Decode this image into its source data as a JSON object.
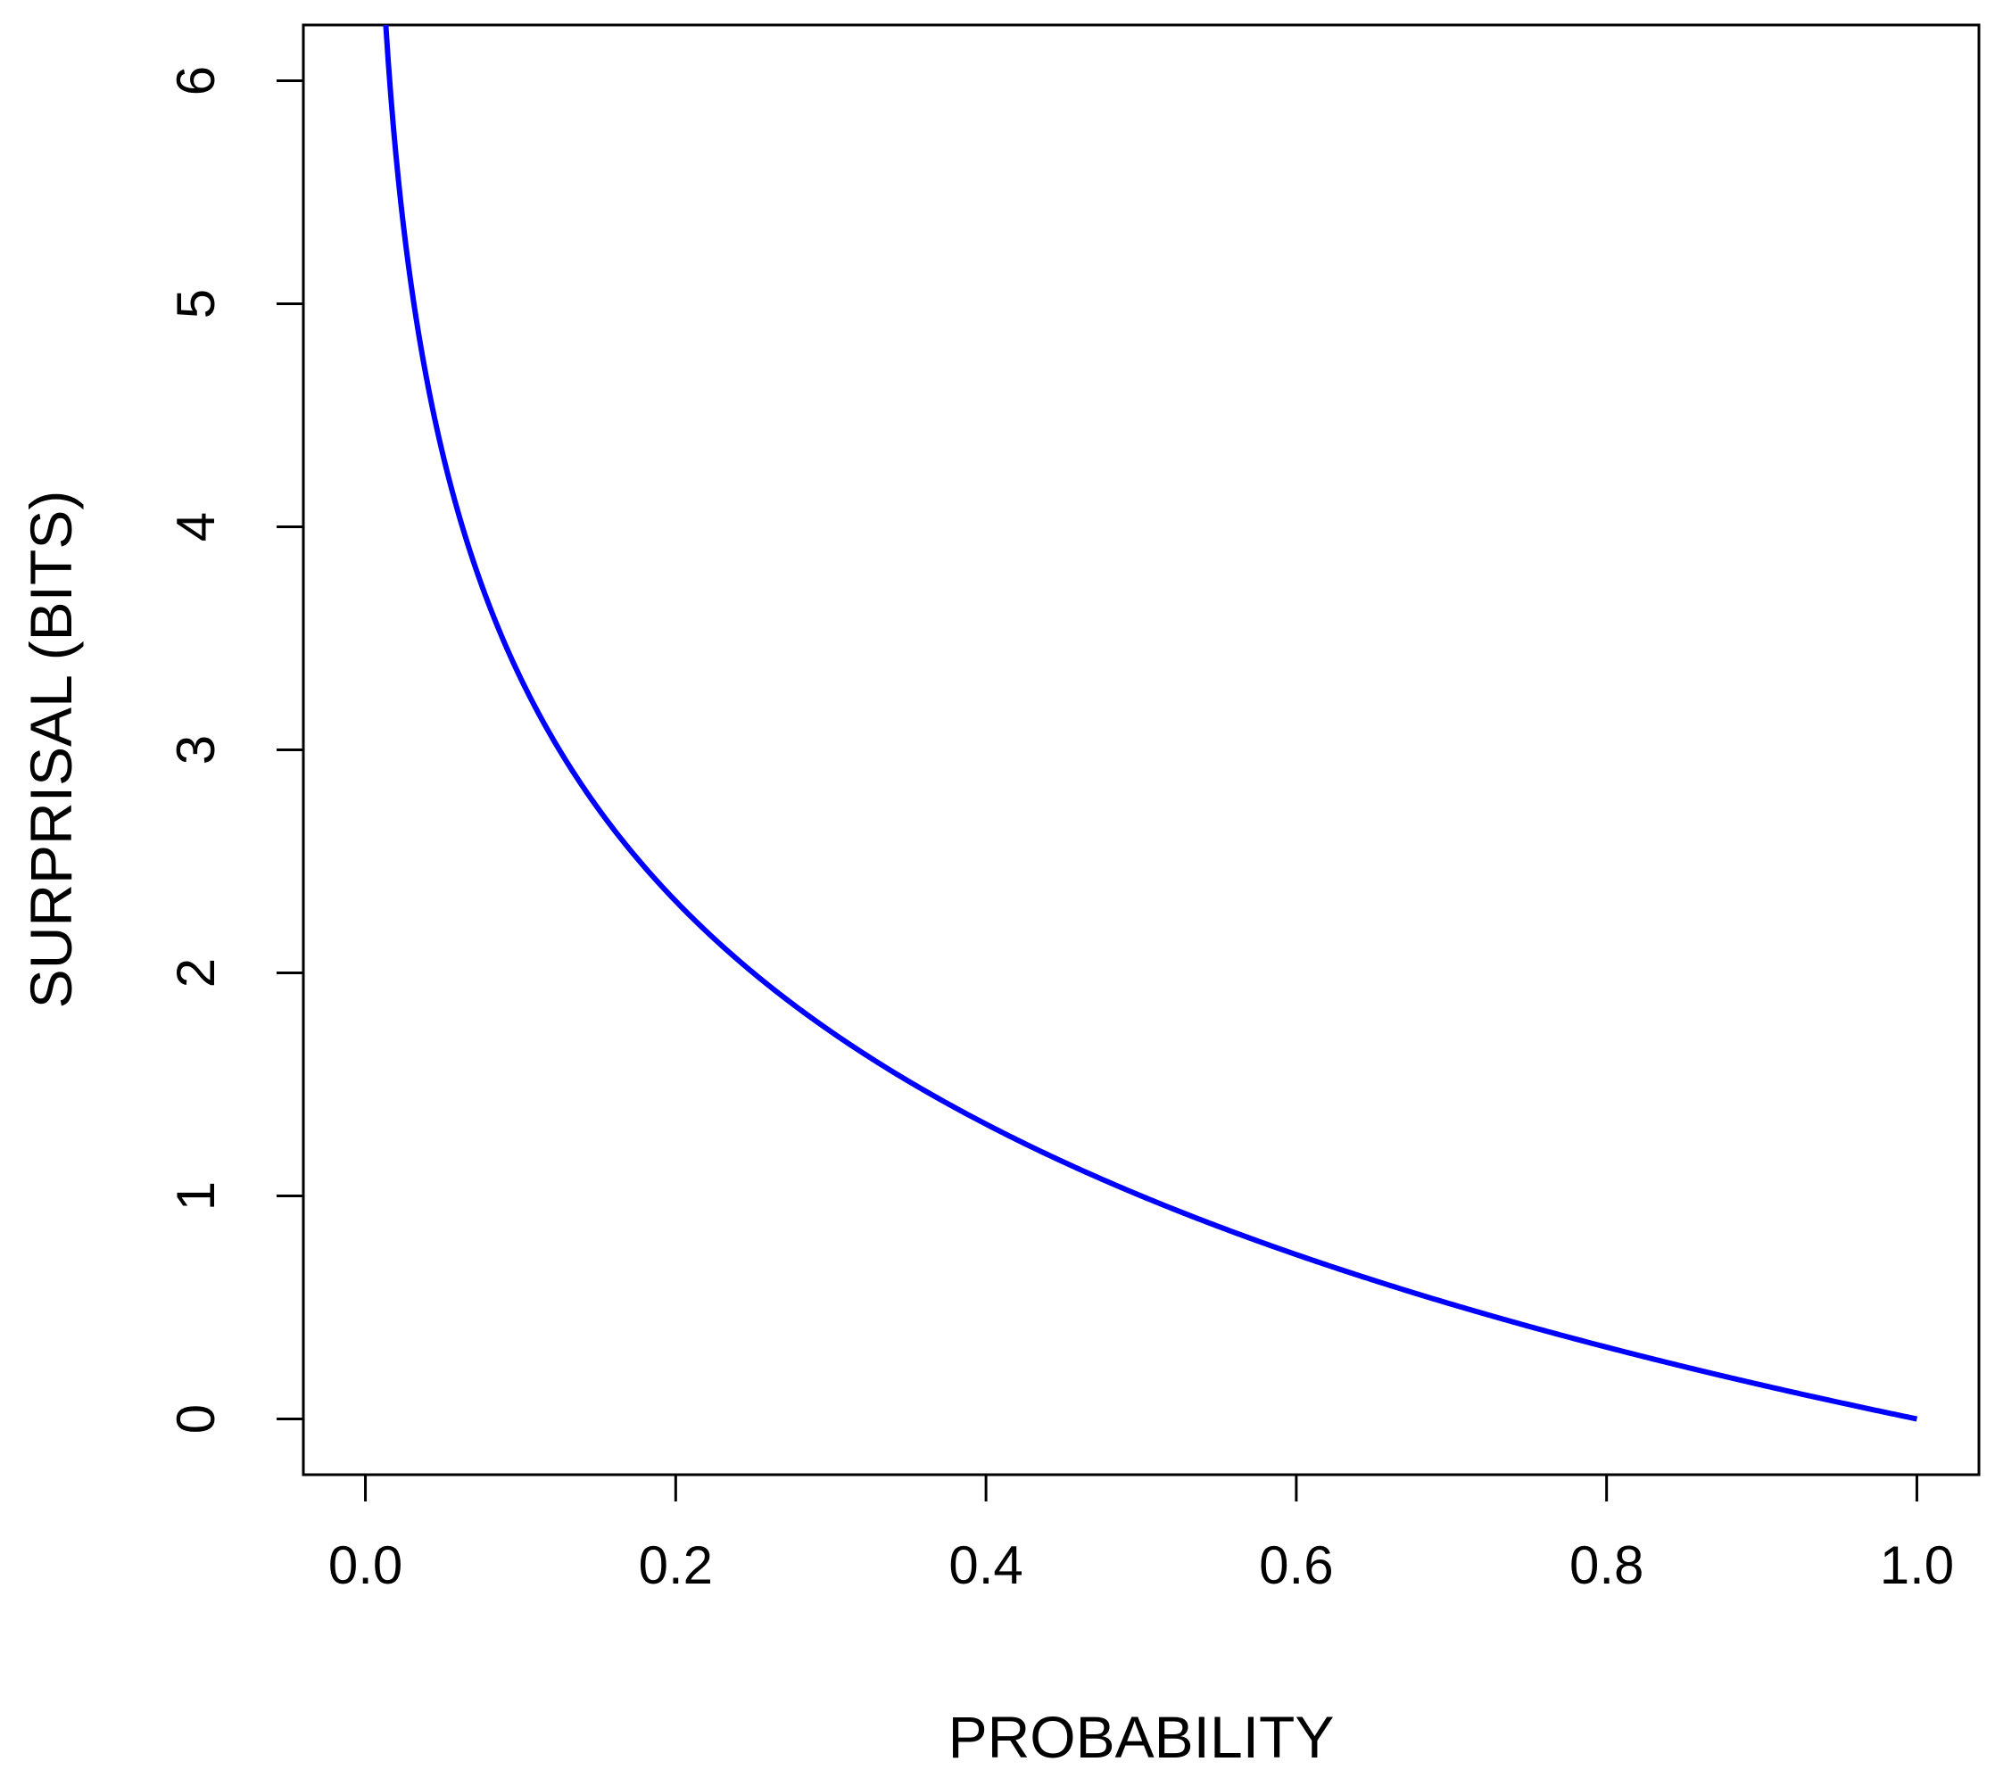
{
  "chart_data": {
    "type": "line",
    "title": "",
    "xlabel": "PROBABILITY",
    "ylabel": "SURPRISAL (BITS)",
    "xlim": [
      -0.04,
      1.04
    ],
    "ylim": [
      -0.25,
      6.25
    ],
    "x_ticks": [
      0.0,
      0.2,
      0.4,
      0.6,
      0.8,
      1.0
    ],
    "x_tick_labels": [
      "0.0",
      "0.2",
      "0.4",
      "0.6",
      "0.8",
      "1.0"
    ],
    "y_ticks": [
      0,
      1,
      2,
      3,
      4,
      5,
      6
    ],
    "y_tick_labels": [
      "0",
      "1",
      "2",
      "3",
      "4",
      "5",
      "6"
    ],
    "grid": false,
    "legend": "none",
    "series": [
      {
        "color": "#0000ff",
        "function": "-log2(x)",
        "x": [
          0.013,
          0.015,
          0.02,
          0.025,
          0.03,
          0.04,
          0.05,
          0.06,
          0.07,
          0.08,
          0.1,
          0.12,
          0.14,
          0.16,
          0.18,
          0.2,
          0.25,
          0.3,
          0.35,
          0.4,
          0.45,
          0.5,
          0.55,
          0.6,
          0.65,
          0.7,
          0.75,
          0.8,
          0.85,
          0.9,
          0.95,
          1.0
        ],
        "y": [
          6.27,
          6.06,
          5.64,
          5.32,
          5.06,
          4.64,
          4.32,
          4.06,
          3.84,
          3.64,
          3.32,
          3.06,
          2.84,
          2.64,
          2.47,
          2.32,
          2.0,
          1.74,
          1.51,
          1.32,
          1.15,
          1.0,
          0.86,
          0.74,
          0.62,
          0.51,
          0.42,
          0.32,
          0.23,
          0.15,
          0.07,
          0.0
        ]
      }
    ]
  }
}
